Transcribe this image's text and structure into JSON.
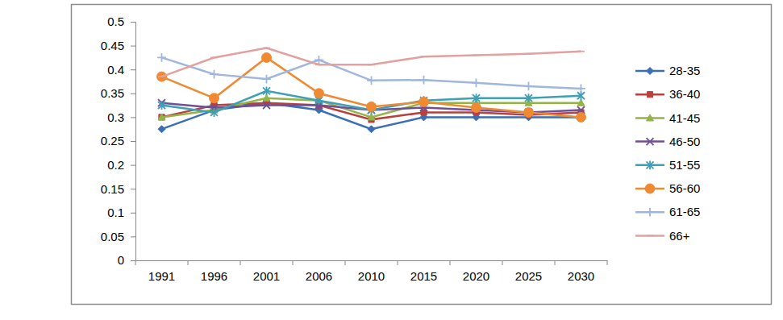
{
  "chart_data": {
    "type": "line",
    "categories": [
      "1991",
      "1996",
      "2001",
      "2006",
      "2010",
      "2015",
      "2020",
      "2025",
      "2030"
    ],
    "ylim": [
      0,
      0.5
    ],
    "yticks": [
      0,
      0.05,
      0.1,
      0.15,
      0.2,
      0.25,
      0.3,
      0.35,
      0.4,
      0.45,
      0.5
    ],
    "grid": false,
    "legend": "right",
    "series": [
      {
        "name": "28-35",
        "color": "#3a6eb5",
        "marker": "diamond",
        "values": [
          0.275,
          0.315,
          0.33,
          0.315,
          0.275,
          0.3,
          0.3,
          0.3,
          0.3
        ]
      },
      {
        "name": "36-40",
        "color": "#b8413e",
        "marker": "square",
        "values": [
          0.3,
          0.325,
          0.33,
          0.325,
          0.295,
          0.31,
          0.31,
          0.305,
          0.31
        ]
      },
      {
        "name": "41-45",
        "color": "#93b447",
        "marker": "triangle",
        "values": [
          0.3,
          0.315,
          0.34,
          0.335,
          0.3,
          0.33,
          0.33,
          0.33,
          0.33
        ]
      },
      {
        "name": "46-50",
        "color": "#6f4f96",
        "marker": "x",
        "values": [
          0.33,
          0.32,
          0.325,
          0.325,
          0.315,
          0.32,
          0.315,
          0.31,
          0.315
        ]
      },
      {
        "name": "51-55",
        "color": "#3f9fb5",
        "marker": "star",
        "values": [
          0.325,
          0.31,
          0.355,
          0.335,
          0.315,
          0.335,
          0.34,
          0.34,
          0.345
        ]
      },
      {
        "name": "56-60",
        "color": "#f08a32",
        "marker": "circle",
        "values": [
          0.385,
          0.34,
          0.425,
          0.35,
          0.322,
          0.332,
          0.32,
          0.31,
          0.3
        ]
      },
      {
        "name": "61-65",
        "color": "#9fb6de",
        "marker": "plus",
        "values": [
          0.425,
          0.39,
          0.38,
          0.42,
          0.377,
          0.378,
          0.372,
          0.365,
          0.36
        ]
      },
      {
        "name": "66+",
        "color": "#e2a19f",
        "marker": "dash",
        "values": [
          0.385,
          0.425,
          0.445,
          0.41,
          0.41,
          0.427,
          0.43,
          0.433,
          0.438
        ]
      }
    ]
  }
}
